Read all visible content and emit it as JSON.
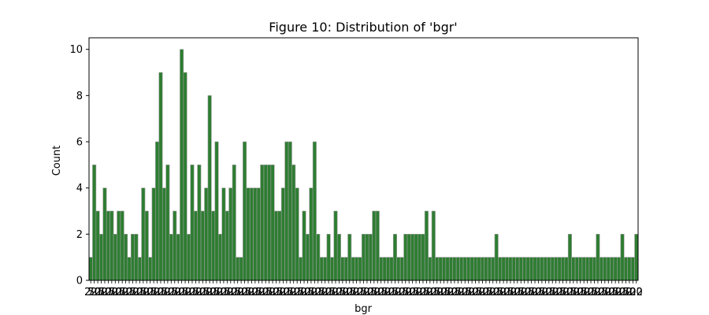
{
  "chart_data": {
    "type": "bar",
    "title": "Figure 10: Distribution of 'bgr'",
    "xlabel": "bgr",
    "ylabel": "Count",
    "ylim": [
      0,
      10.5
    ],
    "yticks": [
      0,
      2,
      4,
      6,
      8,
      10
    ],
    "x_tick_labels": [
      "22",
      "70",
      "500"
    ],
    "bar_color": "#2e7d32",
    "values": [
      1,
      5,
      3,
      2,
      4,
      3,
      3,
      2,
      3,
      3,
      2,
      1,
      2,
      2,
      1,
      4,
      3,
      1,
      4,
      6,
      9,
      4,
      5,
      2,
      3,
      2,
      10,
      9,
      2,
      5,
      3,
      5,
      3,
      4,
      8,
      3,
      6,
      2,
      4,
      3,
      4,
      5,
      1,
      1,
      6,
      4,
      4,
      4,
      4,
      5,
      5,
      5,
      5,
      3,
      3,
      4,
      6,
      6,
      5,
      4,
      1,
      3,
      2,
      4,
      6,
      2,
      1,
      1,
      2,
      1,
      3,
      2,
      1,
      1,
      2,
      1,
      1,
      1,
      2,
      2,
      2,
      3,
      3,
      1,
      1,
      1,
      1,
      2,
      1,
      1,
      2,
      2,
      2,
      2,
      2,
      2,
      3,
      1,
      3,
      1,
      1,
      1,
      1,
      1,
      1,
      1,
      1,
      1,
      1,
      1,
      1,
      1,
      1,
      1,
      1,
      1,
      2,
      1,
      1,
      1,
      1,
      1,
      1,
      1,
      1,
      1,
      1,
      1,
      1,
      1,
      1,
      1,
      1,
      1,
      1,
      1,
      1,
      2,
      1,
      1,
      1,
      1,
      1,
      1,
      1,
      2,
      1,
      1,
      1,
      1,
      1,
      1,
      2,
      1,
      1,
      1,
      2
    ]
  }
}
